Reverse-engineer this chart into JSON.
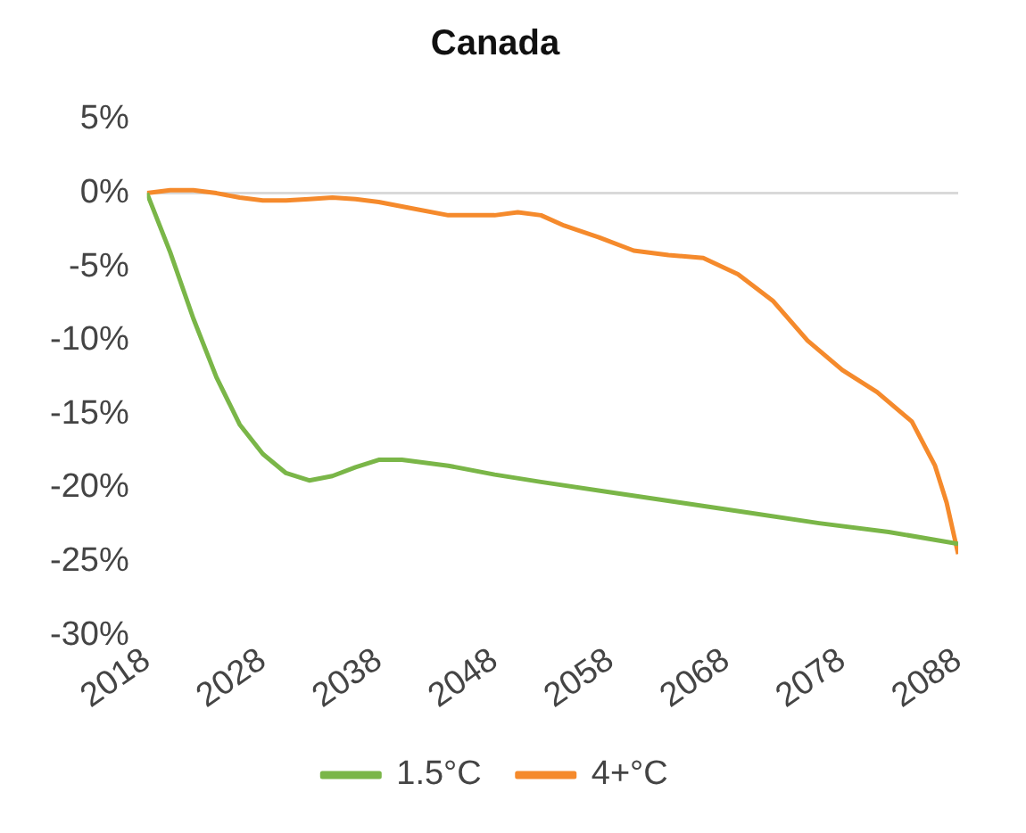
{
  "chart_data": {
    "type": "line",
    "title": "Canada",
    "xlim": [
      2018,
      2088
    ],
    "xticks": [
      2018,
      2028,
      2038,
      2048,
      2058,
      2068,
      2078,
      2088
    ],
    "ylim": [
      -30,
      5
    ],
    "yticks": [
      {
        "value": 5,
        "label": "5%"
      },
      {
        "value": 0,
        "label": "0%"
      },
      {
        "value": -5,
        "label": "-5%"
      },
      {
        "value": -10,
        "label": "-10%"
      },
      {
        "value": -15,
        "label": "-15%"
      },
      {
        "value": -20,
        "label": "-20%"
      },
      {
        "value": -25,
        "label": "-25%"
      },
      {
        "value": -30,
        "label": "-30%"
      }
    ],
    "grid": false,
    "legend": "bottom",
    "marker": "none",
    "line_style": "solid",
    "ref_lines": [
      {
        "axis": "y",
        "value": 0,
        "color": "#d9d9d9"
      }
    ],
    "series": [
      {
        "name": "1.5°C",
        "color": "#7ab648",
        "x": [
          2018,
          2020,
          2022,
          2024,
          2026,
          2028,
          2030,
          2032,
          2034,
          2036,
          2038,
          2040,
          2044,
          2048,
          2052,
          2058,
          2064,
          2070,
          2076,
          2082,
          2088
        ],
        "values": [
          0,
          -4,
          -8.5,
          -12.5,
          -15.7,
          -17.7,
          -19,
          -19.5,
          -19.2,
          -18.6,
          -18.1,
          -18.1,
          -18.5,
          -19.1,
          -19.6,
          -20.3,
          -21,
          -21.7,
          -22.4,
          -23,
          -23.8
        ]
      },
      {
        "name": "4+°C",
        "color": "#f58a2c",
        "x": [
          2018,
          2020,
          2022,
          2024,
          2026,
          2028,
          2030,
          2032,
          2034,
          2036,
          2038,
          2040,
          2044,
          2048,
          2050,
          2052,
          2054,
          2057,
          2060,
          2063,
          2066,
          2069,
          2072,
          2075,
          2078,
          2081,
          2084,
          2086,
          2087,
          2088
        ],
        "values": [
          0,
          0.2,
          0.2,
          0,
          -0.3,
          -0.5,
          -0.5,
          -0.4,
          -0.3,
          -0.4,
          -0.6,
          -0.9,
          -1.5,
          -1.5,
          -1.3,
          -1.5,
          -2.2,
          -3,
          -3.9,
          -4.2,
          -4.4,
          -5.5,
          -7.3,
          -10,
          -12,
          -13.5,
          -15.5,
          -18.5,
          -21,
          -24.5
        ]
      }
    ]
  }
}
